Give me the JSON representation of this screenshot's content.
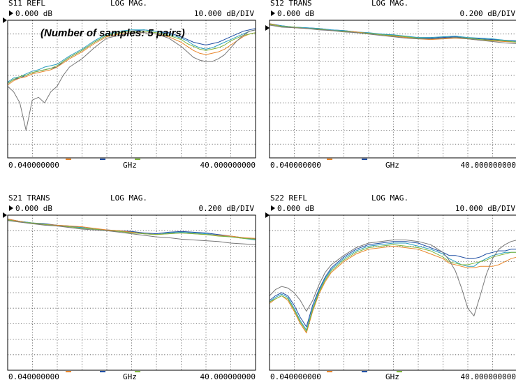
{
  "note": "(Number of samples: 5 pairs)",
  "trace_colors": [
    "#1f4ea3",
    "#2b9fbf",
    "#e9862a",
    "#7fb63c",
    "#777777"
  ],
  "grid_color": "#555555",
  "panels": [
    {
      "id": "s11",
      "param": "S11 REFL",
      "format": "LOG MAG.",
      "ref": "0.000 dB",
      "scale": "10.000 dB/DIV",
      "x_start": "0.040000000",
      "x_unit": "GHz",
      "x_stop": "40.000000000"
    },
    {
      "id": "s12",
      "param": "S12 TRANS",
      "format": "LOG MAG.",
      "ref": "0.000 dB",
      "scale": "0.200 dB/DIV",
      "x_start": "0.040000000",
      "x_unit": "GHz",
      "x_stop": "40.000000000"
    },
    {
      "id": "s21",
      "param": "S21 TRANS",
      "format": "LOG MAG.",
      "ref": "0.000 dB",
      "scale": "0.200 dB/DIV",
      "x_start": "0.040000000",
      "x_unit": "GHz",
      "x_stop": "40.000000000"
    },
    {
      "id": "s22",
      "param": "S22 REFL",
      "format": "LOG MAG.",
      "ref": "0.000 dB",
      "scale": "10.000 dB/DIV",
      "x_start": "0.040000000",
      "x_unit": "GHz",
      "x_stop": "40.000000000"
    }
  ],
  "chart_data": [
    {
      "type": "line",
      "title": "S11 REFL",
      "xlabel": "GHz",
      "xlim": [
        0.04,
        40
      ],
      "ylim": [
        -100,
        0
      ],
      "ylabel_scale": "10.000 dB/DIV",
      "grid": true,
      "x": [
        0.04,
        1,
        2,
        3,
        4,
        5,
        6,
        7,
        8,
        9,
        10,
        12,
        14,
        16,
        18,
        20,
        22,
        24,
        26,
        28,
        29,
        30,
        31,
        32,
        33,
        34,
        35,
        36,
        37,
        38,
        39,
        40
      ],
      "series": [
        {
          "values": [
            -46,
            -43,
            -42,
            -40,
            -38,
            -37,
            -36,
            -35,
            -34,
            -30,
            -27,
            -22,
            -16,
            -11,
            -9,
            -8,
            -7,
            -8,
            -9,
            -12,
            -14,
            -16,
            -17,
            -18,
            -17,
            -16,
            -14,
            -12,
            -10,
            -8,
            -7,
            -6
          ]
        },
        {
          "values": [
            -45,
            -42,
            -41,
            -39,
            -37,
            -36,
            -34,
            -33,
            -32,
            -29,
            -26,
            -21,
            -15,
            -10,
            -8,
            -7,
            -7,
            -8,
            -10,
            -13,
            -15,
            -18,
            -20,
            -21,
            -20,
            -18,
            -16,
            -14,
            -12,
            -10,
            -8,
            -7
          ]
        },
        {
          "values": [
            -47,
            -44,
            -42,
            -41,
            -39,
            -38,
            -37,
            -36,
            -34,
            -31,
            -28,
            -23,
            -17,
            -12,
            -10,
            -9,
            -9,
            -10,
            -12,
            -16,
            -19,
            -22,
            -24,
            -25,
            -24,
            -23,
            -21,
            -18,
            -15,
            -12,
            -10,
            -9
          ]
        },
        {
          "values": [
            -46,
            -43,
            -41,
            -40,
            -38,
            -37,
            -36,
            -35,
            -33,
            -30,
            -27,
            -22,
            -16,
            -11,
            -9,
            -8,
            -8,
            -9,
            -11,
            -14,
            -17,
            -19,
            -21,
            -22,
            -21,
            -20,
            -18,
            -15,
            -13,
            -11,
            -10,
            -9
          ]
        },
        {
          "values": [
            -48,
            -52,
            -60,
            -80,
            -58,
            -56,
            -60,
            -52,
            -48,
            -40,
            -34,
            -28,
            -20,
            -13,
            -11,
            -9,
            -9,
            -10,
            -13,
            -19,
            -23,
            -27,
            -29,
            -30,
            -30,
            -28,
            -25,
            -20,
            -15,
            -11,
            -8,
            -7
          ]
        }
      ]
    },
    {
      "type": "line",
      "title": "S12 TRANS",
      "xlabel": "GHz",
      "xlim": [
        0.04,
        40
      ],
      "ylim": [
        -2,
        0
      ],
      "ylabel_scale": "0.200 dB/DIV",
      "grid": true,
      "x": [
        0.04,
        2,
        4,
        6,
        8,
        10,
        12,
        14,
        16,
        18,
        20,
        22,
        24,
        26,
        28,
        30,
        32,
        34,
        36,
        38,
        40
      ],
      "series": [
        {
          "values": [
            -0.05,
            -0.08,
            -0.1,
            -0.11,
            -0.12,
            -0.14,
            -0.15,
            -0.17,
            -0.19,
            -0.2,
            -0.22,
            -0.24,
            -0.26,
            -0.26,
            -0.25,
            -0.24,
            -0.26,
            -0.27,
            -0.28,
            -0.29,
            -0.3
          ]
        },
        {
          "values": [
            -0.06,
            -0.08,
            -0.1,
            -0.11,
            -0.12,
            -0.14,
            -0.15,
            -0.17,
            -0.18,
            -0.2,
            -0.21,
            -0.23,
            -0.25,
            -0.25,
            -0.24,
            -0.23,
            -0.25,
            -0.26,
            -0.27,
            -0.29,
            -0.31
          ]
        },
        {
          "values": [
            -0.05,
            -0.09,
            -0.11,
            -0.12,
            -0.13,
            -0.15,
            -0.16,
            -0.17,
            -0.19,
            -0.21,
            -0.23,
            -0.25,
            -0.27,
            -0.28,
            -0.27,
            -0.26,
            -0.27,
            -0.29,
            -0.3,
            -0.31,
            -0.32
          ]
        },
        {
          "values": [
            -0.06,
            -0.09,
            -0.1,
            -0.12,
            -0.13,
            -0.15,
            -0.16,
            -0.18,
            -0.19,
            -0.21,
            -0.22,
            -0.24,
            -0.26,
            -0.27,
            -0.26,
            -0.25,
            -0.26,
            -0.28,
            -0.29,
            -0.3,
            -0.32
          ]
        },
        {
          "values": [
            -0.07,
            -0.1,
            -0.11,
            -0.12,
            -0.14,
            -0.15,
            -0.17,
            -0.18,
            -0.2,
            -0.22,
            -0.24,
            -0.26,
            -0.27,
            -0.27,
            -0.26,
            -0.25,
            -0.27,
            -0.29,
            -0.31,
            -0.33,
            -0.34
          ]
        }
      ]
    },
    {
      "type": "line",
      "title": "S21 TRANS",
      "xlabel": "GHz",
      "xlim": [
        0.04,
        40
      ],
      "ylim": [
        -2,
        0
      ],
      "ylabel_scale": "0.200 dB/DIV",
      "grid": true,
      "x": [
        0.04,
        2,
        4,
        6,
        8,
        10,
        12,
        14,
        16,
        18,
        20,
        22,
        24,
        26,
        28,
        30,
        32,
        34,
        36,
        38,
        40
      ],
      "series": [
        {
          "values": [
            -0.05,
            -0.08,
            -0.1,
            -0.11,
            -0.13,
            -0.14,
            -0.16,
            -0.18,
            -0.19,
            -0.2,
            -0.21,
            -0.23,
            -0.24,
            -0.22,
            -0.21,
            -0.22,
            -0.23,
            -0.25,
            -0.27,
            -0.29,
            -0.31
          ]
        },
        {
          "values": [
            -0.06,
            -0.08,
            -0.1,
            -0.12,
            -0.13,
            -0.15,
            -0.16,
            -0.18,
            -0.2,
            -0.21,
            -0.22,
            -0.24,
            -0.25,
            -0.23,
            -0.22,
            -0.23,
            -0.24,
            -0.26,
            -0.28,
            -0.3,
            -0.32
          ]
        },
        {
          "values": [
            -0.05,
            -0.08,
            -0.11,
            -0.12,
            -0.13,
            -0.14,
            -0.15,
            -0.17,
            -0.19,
            -0.2,
            -0.22,
            -0.24,
            -0.25,
            -0.24,
            -0.23,
            -0.24,
            -0.25,
            -0.26,
            -0.27,
            -0.29,
            -0.3
          ]
        },
        {
          "values": [
            -0.06,
            -0.09,
            -0.1,
            -0.12,
            -0.14,
            -0.15,
            -0.17,
            -0.18,
            -0.2,
            -0.21,
            -0.23,
            -0.24,
            -0.25,
            -0.24,
            -0.23,
            -0.24,
            -0.25,
            -0.27,
            -0.28,
            -0.3,
            -0.31
          ]
        },
        {
          "values": [
            -0.07,
            -0.09,
            -0.11,
            -0.13,
            -0.14,
            -0.16,
            -0.18,
            -0.19,
            -0.2,
            -0.22,
            -0.24,
            -0.26,
            -0.28,
            -0.29,
            -0.31,
            -0.32,
            -0.33,
            -0.34,
            -0.36,
            -0.37,
            -0.38
          ]
        }
      ]
    },
    {
      "type": "line",
      "title": "S22 REFL",
      "xlabel": "GHz",
      "xlim": [
        0.04,
        40
      ],
      "ylim": [
        -100,
        0
      ],
      "ylabel_scale": "10.000 dB/DIV",
      "grid": true,
      "x": [
        0.04,
        1,
        2,
        3,
        4,
        5,
        6,
        7,
        8,
        9,
        10,
        12,
        14,
        16,
        18,
        20,
        22,
        24,
        26,
        28,
        29,
        30,
        31,
        32,
        33,
        34,
        35,
        36,
        37,
        38,
        39,
        40
      ],
      "series": [
        {
          "values": [
            -55,
            -52,
            -50,
            -52,
            -58,
            -66,
            -72,
            -58,
            -48,
            -40,
            -34,
            -27,
            -22,
            -19,
            -18,
            -17,
            -17,
            -18,
            -21,
            -24,
            -26,
            -26,
            -27,
            -28,
            -28,
            -27,
            -25,
            -24,
            -23,
            -23,
            -22,
            -22
          ]
        },
        {
          "values": [
            -56,
            -53,
            -51,
            -53,
            -60,
            -68,
            -74,
            -60,
            -49,
            -41,
            -35,
            -28,
            -23,
            -20,
            -19,
            -18,
            -18,
            -20,
            -22,
            -25,
            -28,
            -30,
            -32,
            -33,
            -33,
            -30,
            -28,
            -26,
            -25,
            -24,
            -24,
            -24
          ]
        },
        {
          "values": [
            -57,
            -54,
            -52,
            -55,
            -62,
            -70,
            -76,
            -62,
            -51,
            -43,
            -37,
            -30,
            -25,
            -22,
            -21,
            -20,
            -21,
            -22,
            -25,
            -28,
            -31,
            -32,
            -33,
            -34,
            -34,
            -33,
            -33,
            -33,
            -32,
            -30,
            -28,
            -27
          ]
        },
        {
          "values": [
            -56,
            -54,
            -52,
            -54,
            -61,
            -69,
            -75,
            -61,
            -50,
            -42,
            -36,
            -29,
            -24,
            -21,
            -20,
            -19,
            -20,
            -21,
            -23,
            -27,
            -30,
            -31,
            -32,
            -32,
            -31,
            -30,
            -29,
            -27,
            -26,
            -25,
            -24,
            -24
          ]
        },
        {
          "values": [
            -52,
            -48,
            -46,
            -47,
            -50,
            -55,
            -62,
            -55,
            -45,
            -37,
            -32,
            -26,
            -21,
            -18,
            -17,
            -16,
            -16,
            -17,
            -19,
            -24,
            -29,
            -36,
            -47,
            -60,
            -65,
            -52,
            -38,
            -28,
            -22,
            -19,
            -17,
            -16
          ]
        }
      ]
    }
  ]
}
